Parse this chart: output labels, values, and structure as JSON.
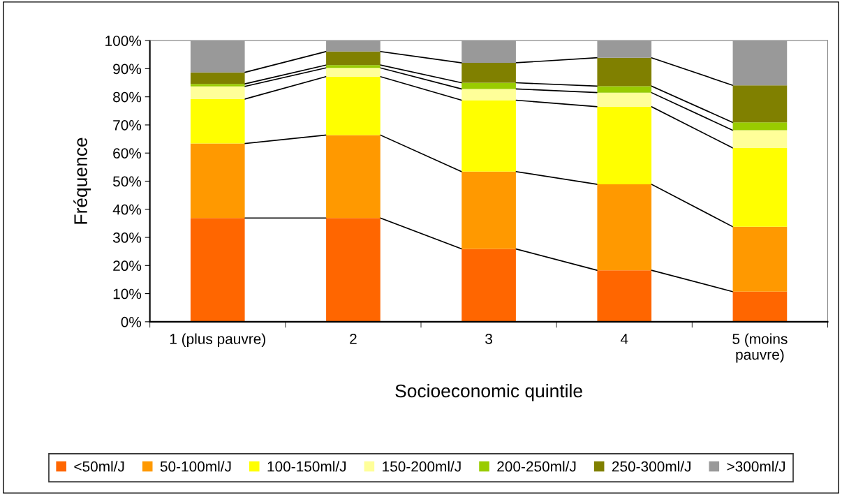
{
  "chart_data": {
    "type": "bar",
    "stacked": true,
    "xlabel": "Socioeconomic quintile",
    "ylabel": "Fréquence",
    "categories": [
      "1 (plus pauvre)",
      "2",
      "3",
      "4",
      "5 (moins\npauvre)"
    ],
    "series": [
      {
        "name": "<50ml/J",
        "color": "#ff6600",
        "values": [
          36.9,
          36.9,
          25.9,
          18.3,
          10.7
        ]
      },
      {
        "name": "50-100ml/J",
        "color": "#ff9900",
        "values": [
          26.5,
          29.5,
          27.5,
          30.6,
          23.1
        ]
      },
      {
        "name": "100-150ml/J",
        "color": "#ffff00",
        "values": [
          15.8,
          20.8,
          25.4,
          27.6,
          28.0
        ]
      },
      {
        "name": "150-200ml/J",
        "color": "#ffff99",
        "values": [
          4.5,
          3.1,
          4.0,
          5.0,
          6.3
        ]
      },
      {
        "name": "200-250ml/J",
        "color": "#99cc00",
        "values": [
          0.9,
          1.0,
          2.2,
          2.3,
          2.8
        ]
      },
      {
        "name": "250-300ml/J",
        "color": "#808000",
        "values": [
          4.1,
          4.8,
          7.1,
          10.1,
          13.2
        ]
      },
      {
        "name": ">300ml/J",
        "color": "#999999",
        "values": [
          11.3,
          3.9,
          7.9,
          6.1,
          15.9
        ]
      }
    ],
    "ylim": [
      0,
      100
    ],
    "yticks": [
      {
        "value": 0,
        "label": "0%"
      },
      {
        "value": 10,
        "label": "10%"
      },
      {
        "value": 20,
        "label": "20%"
      },
      {
        "value": 30,
        "label": "30%"
      },
      {
        "value": 40,
        "label": "40%"
      },
      {
        "value": 50,
        "label": "50%"
      },
      {
        "value": 60,
        "label": "60%"
      },
      {
        "value": 70,
        "label": "70%"
      },
      {
        "value": 80,
        "label": "80%"
      },
      {
        "value": 90,
        "label": "90%"
      },
      {
        "value": 100,
        "label": "100%"
      }
    ],
    "grid": false,
    "legend": "bottom"
  }
}
